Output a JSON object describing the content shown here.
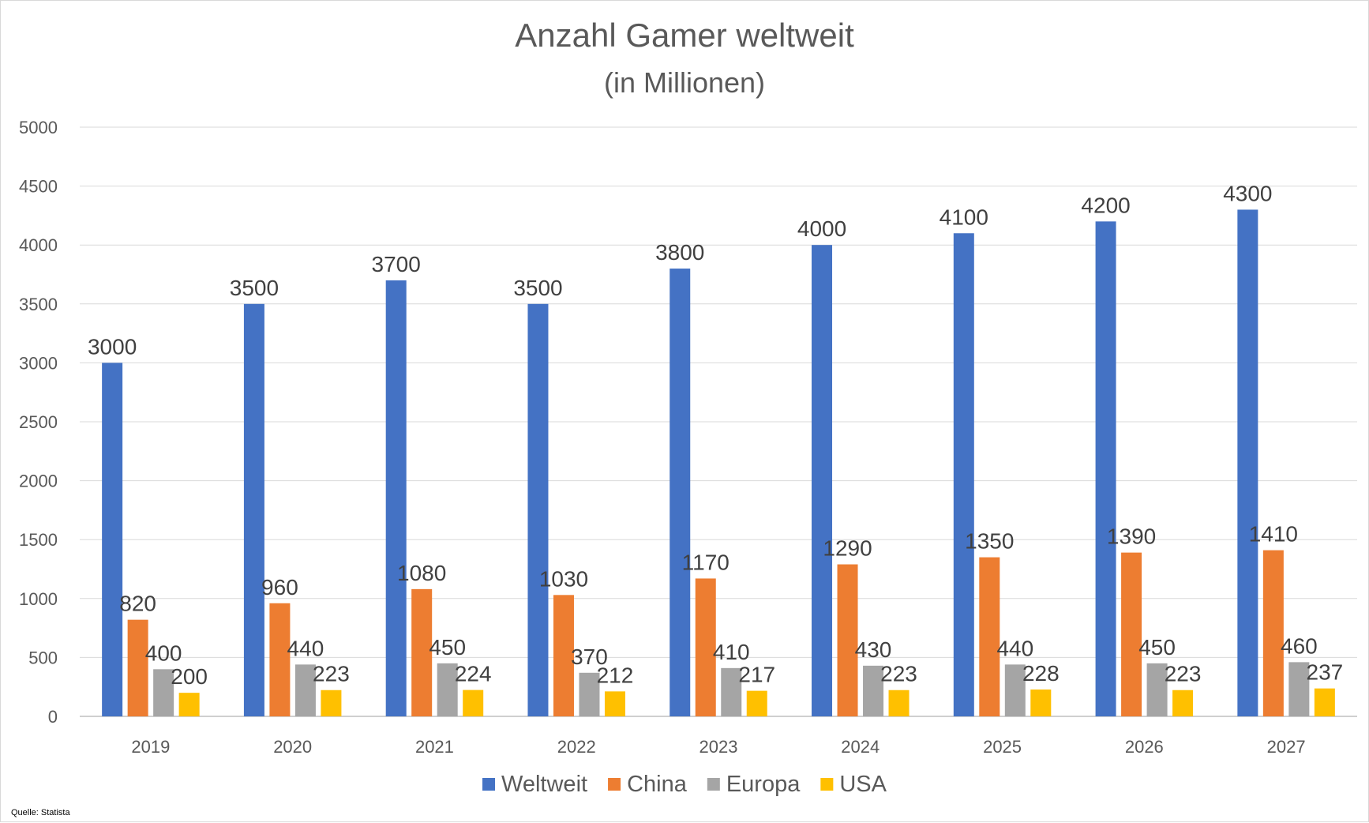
{
  "chart_data": {
    "type": "bar",
    "title": "Anzahl Gamer weltweit",
    "subtitle": "(in Millionen)",
    "xlabel": "",
    "ylabel": "",
    "ylim": [
      0,
      5000
    ],
    "yticks": [
      "0",
      "500",
      "1000",
      "1500",
      "2000",
      "2500",
      "3000",
      "3500",
      "4000",
      "4500",
      "5000"
    ],
    "grid": true,
    "legend_position": "bottom",
    "categories": [
      "2019",
      "2020",
      "2021",
      "2022",
      "2023",
      "2024",
      "2025",
      "2026",
      "2027"
    ],
    "series": [
      {
        "name": "Weltweit",
        "color": "#4472c4",
        "values": [
          3000,
          3500,
          3700,
          3500,
          3800,
          4000,
          4100,
          4200,
          4300
        ]
      },
      {
        "name": "China",
        "color": "#ed7d31",
        "values": [
          820,
          960,
          1080,
          1030,
          1170,
          1290,
          1350,
          1390,
          1410
        ]
      },
      {
        "name": "Europa",
        "color": "#a5a5a5",
        "values": [
          400,
          440,
          450,
          370,
          410,
          430,
          440,
          450,
          460
        ]
      },
      {
        "name": "USA",
        "color": "#ffc000",
        "values": [
          200,
          223,
          224,
          212,
          217,
          223,
          228,
          223,
          237
        ]
      }
    ]
  },
  "source": "Quelle: Statista"
}
